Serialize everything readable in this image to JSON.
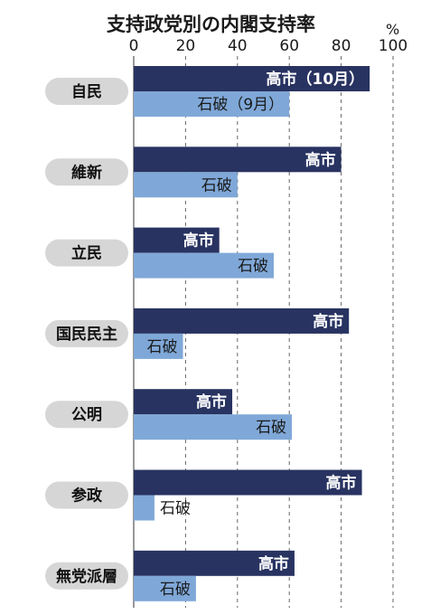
{
  "chart_data": {
    "type": "bar",
    "orientation": "horizontal",
    "title": "支持政党別の内閣支持率",
    "unit": "%",
    "xlim": [
      0,
      100
    ],
    "xticks": [
      "0",
      "20",
      "40",
      "60",
      "80",
      "100"
    ],
    "grid": "dashed vertical",
    "categories": [
      "自民",
      "維新",
      "立民",
      "国民民主",
      "公明",
      "参政",
      "無党派層"
    ],
    "series": [
      {
        "name": "高市",
        "color": "#283361",
        "values": [
          91,
          80,
          33,
          83,
          38,
          88,
          62
        ]
      },
      {
        "name": "石破",
        "color": "#7fa8d8",
        "values": [
          60,
          40,
          54,
          19,
          61,
          8,
          24
        ]
      }
    ],
    "bar_labels": [
      [
        "高市（10月）",
        "石破（9月）"
      ],
      [
        "高市",
        "石破"
      ],
      [
        "高市",
        "石破"
      ],
      [
        "高市",
        "石破"
      ],
      [
        "高市",
        "石破"
      ],
      [
        "高市",
        "石破"
      ],
      [
        "高市",
        "石破"
      ]
    ]
  }
}
